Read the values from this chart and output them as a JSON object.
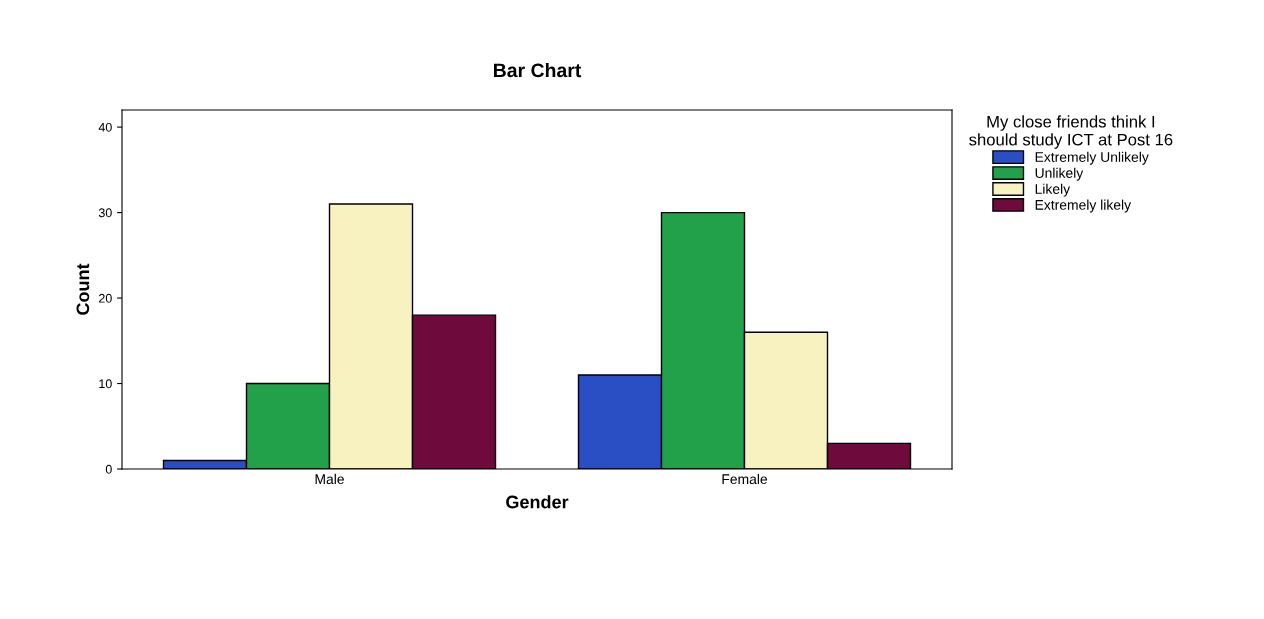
{
  "chart_data": {
    "type": "bar",
    "title": "Bar Chart",
    "xlabel": "Gender",
    "ylabel": "Count",
    "legend_title": "My close friends think I should study ICT at Post 16",
    "categories": [
      "Male",
      "Female"
    ],
    "series": [
      {
        "name": "Extremely Unlikely",
        "color": "#2a4fc4",
        "values": [
          1,
          11
        ]
      },
      {
        "name": "Unlikely",
        "color": "#22a04a",
        "values": [
          10,
          30
        ]
      },
      {
        "name": "Likely",
        "color": "#f8f2c0",
        "values": [
          31,
          16
        ]
      },
      {
        "name": "Extremely likely",
        "color": "#6e0a3c",
        "values": [
          18,
          3
        ]
      }
    ],
    "ylim": [
      0,
      42
    ],
    "yticks": [
      0,
      10,
      20,
      30,
      40
    ],
    "grid": false,
    "legend": "top right"
  }
}
